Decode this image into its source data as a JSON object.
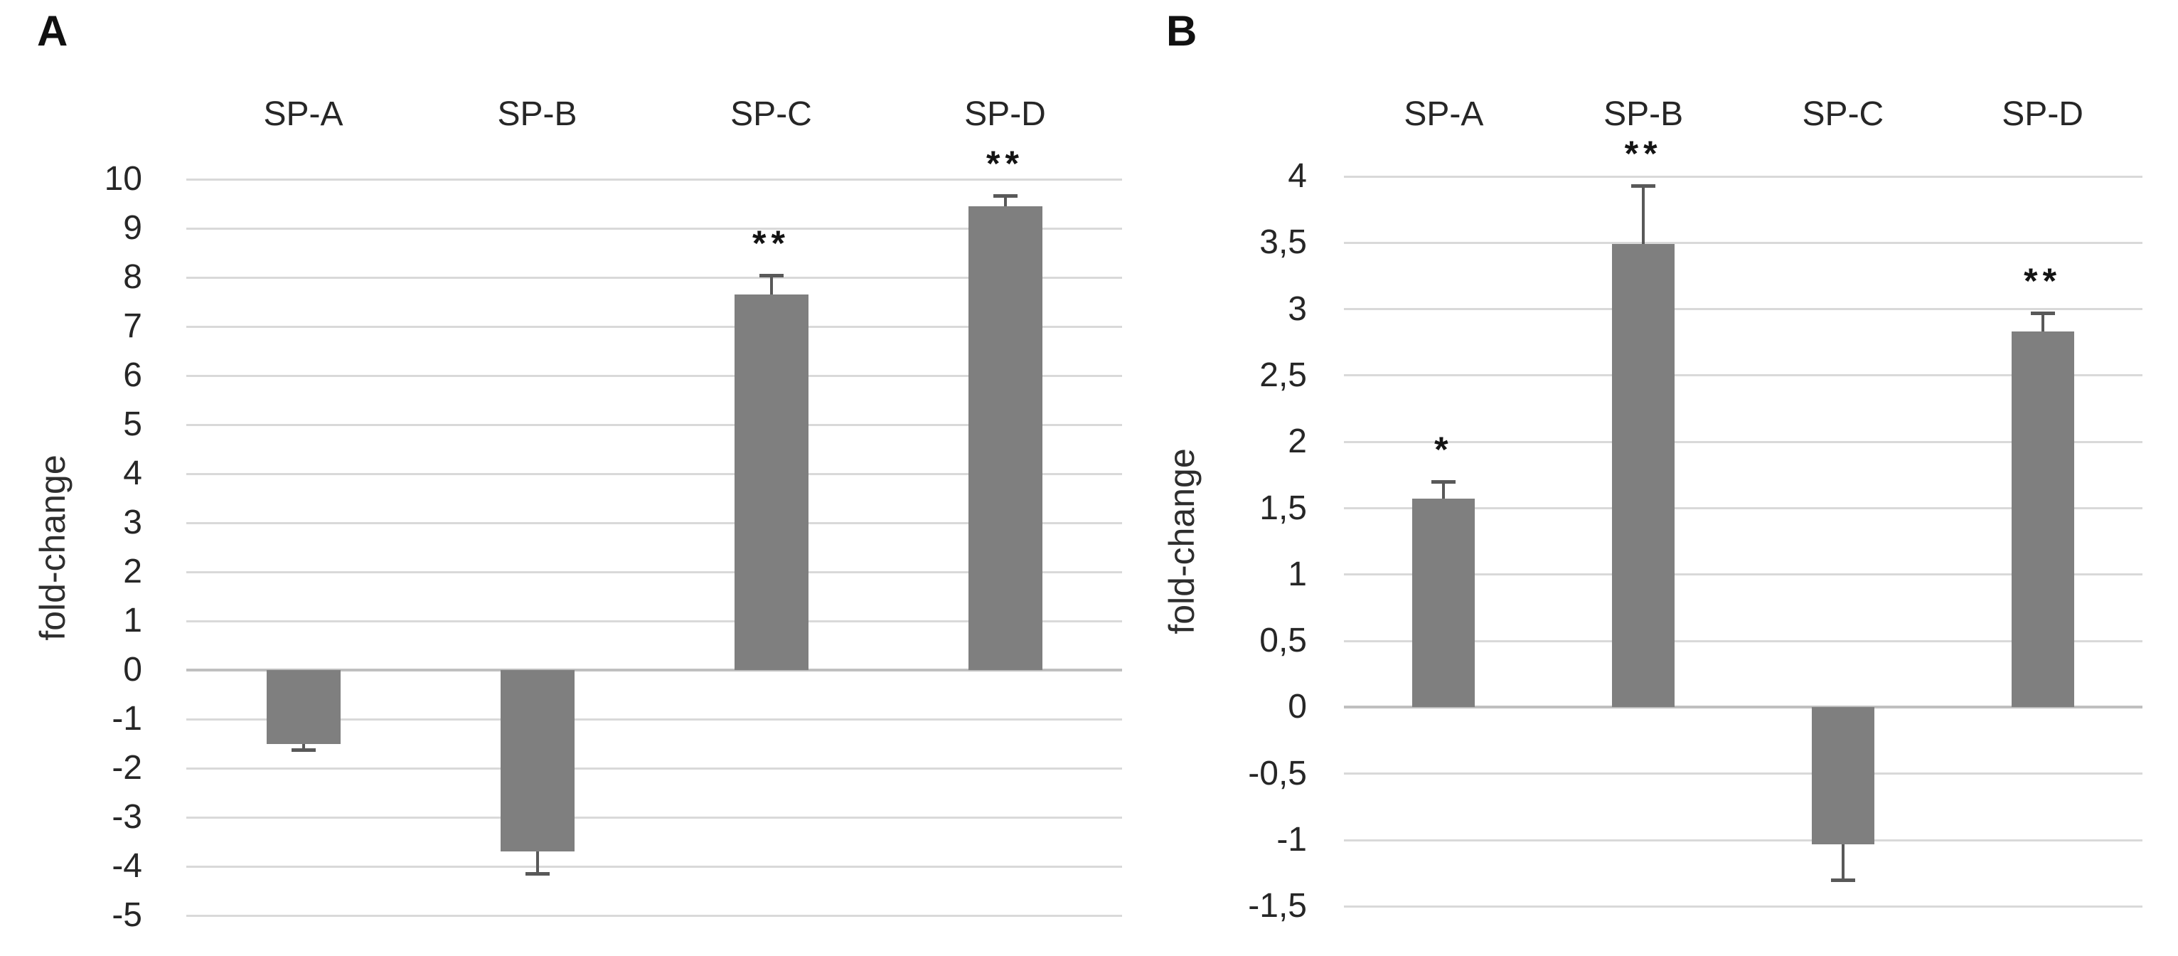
{
  "figure": {
    "background": "#ffffff",
    "colors": {
      "bar": "#7f7f7f",
      "gridline": "#d9d9d9",
      "zero_axis": "#bfbfbf",
      "error_bar": "#595959",
      "text": "#262626",
      "panel_letter": "#111111"
    }
  },
  "chart_data": [
    {
      "panel_label": "A",
      "type": "bar",
      "title": "",
      "xlabel": "",
      "ylabel": "fold-change",
      "categories": [
        "SP-A",
        "SP-B",
        "SP-C",
        "SP-D"
      ],
      "values": [
        -1.5,
        -3.7,
        7.65,
        9.45
      ],
      "errors": [
        0.12,
        0.45,
        0.39,
        0.22
      ],
      "significance": [
        "",
        "",
        "**",
        "**"
      ],
      "ylim": [
        -5,
        10
      ],
      "ytick_step": 1,
      "ytick_labels": [
        "10",
        "9",
        "8",
        "7",
        "6",
        "5",
        "4",
        "3",
        "2",
        "1",
        "0",
        "-1",
        "-2",
        "-3",
        "-4",
        "-5"
      ],
      "decimal_style": "period",
      "grid": true,
      "legend": "none",
      "category_labels_position": "top",
      "error_bars": "one-sided-outward"
    },
    {
      "panel_label": "B",
      "type": "bar",
      "title": "",
      "xlabel": "",
      "ylabel": "fold-change",
      "categories": [
        "SP-A",
        "SP-B",
        "SP-C",
        "SP-D"
      ],
      "values": [
        1.57,
        3.49,
        -1.03,
        2.83
      ],
      "errors": [
        0.13,
        0.44,
        0.27,
        0.14
      ],
      "significance": [
        "*",
        "**",
        "",
        "**"
      ],
      "ylim": [
        -1.5,
        4
      ],
      "ytick_step": 0.5,
      "ytick_labels": [
        "4",
        "3,5",
        "3",
        "2,5",
        "2",
        "1,5",
        "1",
        "0,5",
        "0",
        "-0,5",
        "-1",
        "-1,5"
      ],
      "decimal_style": "comma",
      "grid": true,
      "legend": "none",
      "category_labels_position": "top",
      "error_bars": "one-sided-outward"
    }
  ]
}
